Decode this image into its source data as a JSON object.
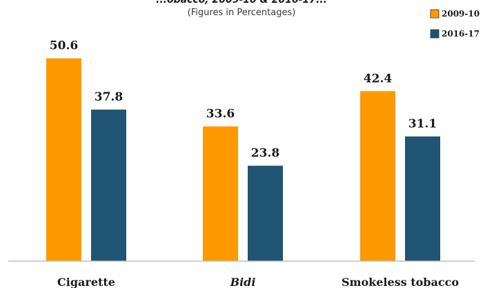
{
  "chart_data": {
    "type": "bar",
    "title": "...obacco, 2009-10 & 2016-17...",
    "subtitle": "(Figures in Percentages)",
    "categories": [
      "Cigarette",
      "Bidi",
      "Smokeless tobacco"
    ],
    "category_italic": [
      false,
      true,
      false
    ],
    "series": [
      {
        "name": "2009-10",
        "values": [
          50.6,
          33.6,
          42.4
        ],
        "color": "#FF9900"
      },
      {
        "name": "2016-17",
        "values": [
          37.8,
          23.8,
          31.1
        ],
        "color": "#1F5472"
      }
    ],
    "value_labels": [
      [
        "50.6",
        "33.6",
        "42.4"
      ],
      [
        "37.8",
        "23.8",
        "31.1"
      ]
    ],
    "ylim": [
      0,
      55
    ],
    "grid": false,
    "legend_position": "top-right",
    "axis_color": "#BFBFBF"
  }
}
